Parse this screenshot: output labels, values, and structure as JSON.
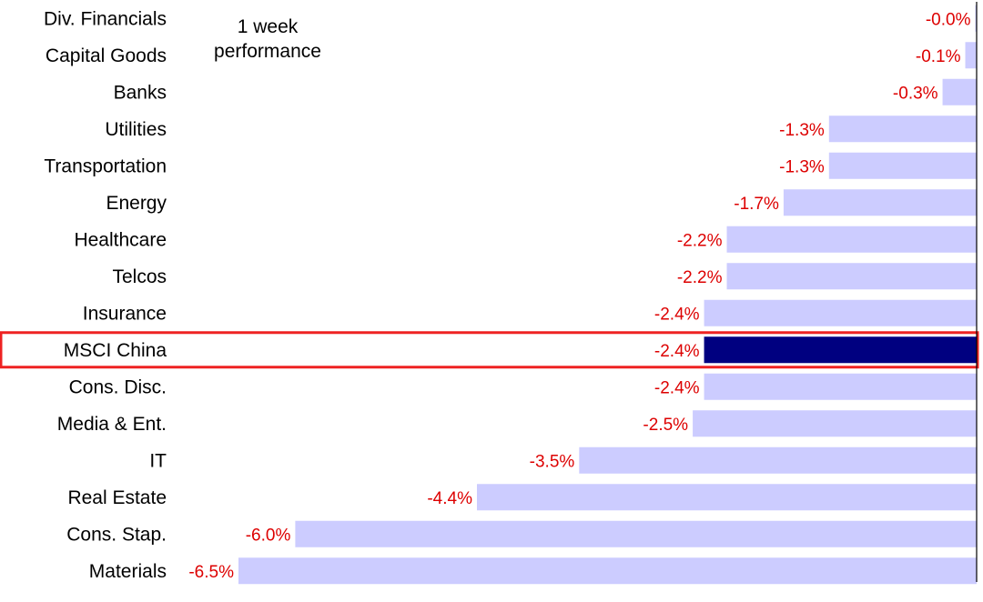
{
  "chart_data": {
    "type": "bar",
    "orientation": "horizontal",
    "annotation": "1 week performance",
    "categories": [
      "Div. Financials",
      "Capital Goods",
      "Banks",
      "Utilities",
      "Transportation",
      "Energy",
      "Healthcare",
      "Telcos",
      "Insurance",
      "MSCI China",
      "Cons. Disc.",
      "Media & Ent.",
      "IT",
      "Real Estate",
      "Cons. Stap.",
      "Materials"
    ],
    "values": [
      -0.0,
      -0.1,
      -0.3,
      -1.3,
      -1.3,
      -1.7,
      -2.2,
      -2.2,
      -2.4,
      -2.4,
      -2.4,
      -2.5,
      -3.5,
      -4.4,
      -6.0,
      -6.5
    ],
    "data_labels": [
      "-0.0%",
      "-0.1%",
      "-0.3%",
      "-1.3%",
      "-1.3%",
      "-1.7%",
      "-2.2%",
      "-2.2%",
      "-2.4%",
      "-2.4%",
      "-2.4%",
      "-2.5%",
      "-3.5%",
      "-4.4%",
      "-6.0%",
      "-6.5%"
    ],
    "highlight": "MSCI China",
    "xlim": [
      -6.5,
      0
    ],
    "grid": false,
    "legend": "none",
    "colors": {
      "bar": "#ccccff",
      "highlight_bar": "#000080",
      "highlight_box": "#ee2222",
      "value_label": "#dd0000",
      "axis": "#000000"
    }
  }
}
